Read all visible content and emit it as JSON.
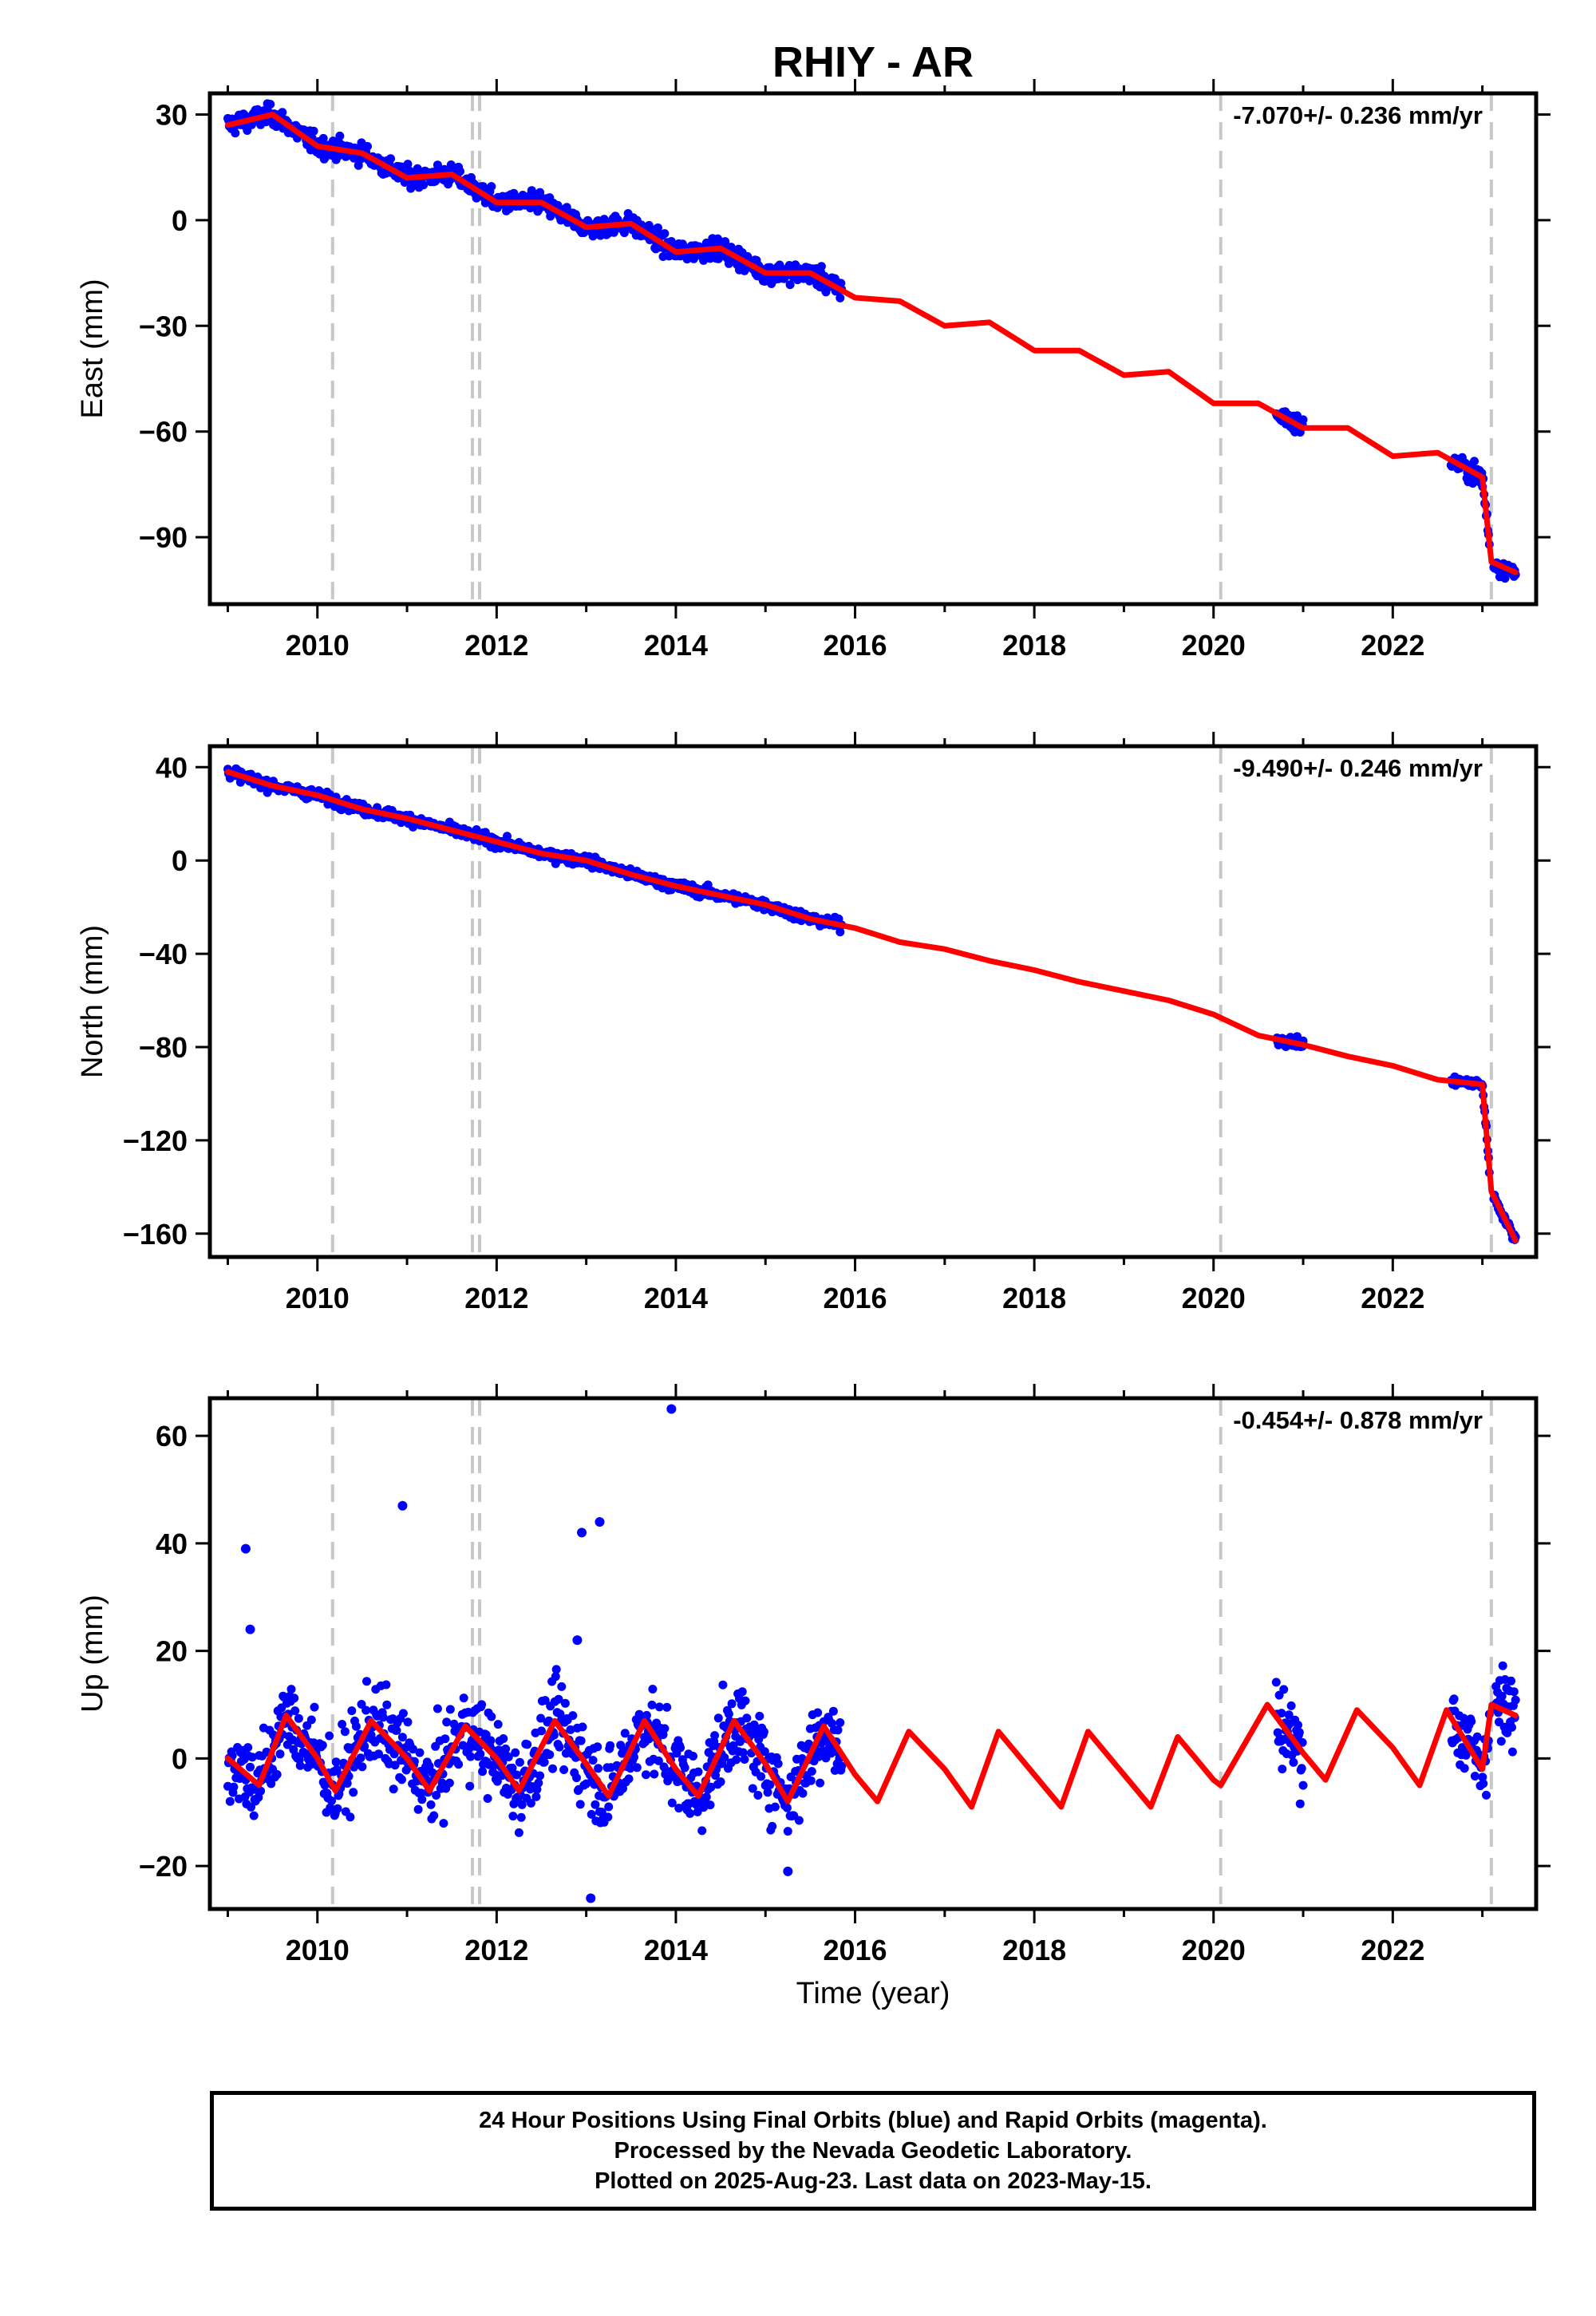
{
  "title": "RHIY - AR",
  "colors": {
    "data": "#0000ff",
    "model": "#ff0000",
    "steps": "#c8c8c8",
    "axes": "#000000"
  },
  "xlabel": "Time (year)",
  "footer": {
    "line1": "24 Hour Positions Using Final Orbits (blue) and Rapid Orbits (magenta).",
    "line2": "Processed by the Nevada Geodetic Laboratory.",
    "line3": "Plotted on 2025-Aug-23. Last data on 2023-May-15."
  },
  "chart_data": [
    {
      "type": "scatter",
      "component": "east",
      "ylabel": "East (mm)",
      "rate_label": "-7.070+/- 0.236 mm/yr",
      "xlim": [
        2008.8,
        2023.6
      ],
      "ylim": [
        -109,
        36
      ],
      "xticks": [
        2010,
        2012,
        2014,
        2016,
        2018,
        2020,
        2022
      ],
      "xtick_labels": [
        "2010",
        "2012",
        "2014",
        "2016",
        "2018",
        "2020",
        "2022"
      ],
      "yticks": [
        30,
        0,
        -30,
        -60,
        -90
      ],
      "ytick_labels": [
        "30",
        "0",
        "−30",
        "−60",
        "−90"
      ],
      "step_lines": [
        2010.17,
        2011.73,
        2011.81,
        2020.08,
        2023.1
      ],
      "data_segments": [
        [
          2009.0,
          2015.85
        ],
        [
          2020.7,
          2021.0
        ],
        [
          2022.65,
          2023.37
        ]
      ],
      "series": [
        {
          "name": "",
          "role": "model fit",
          "x": [
            2009.0,
            2009.5,
            2010.0,
            2010.5,
            2011.0,
            2011.5,
            2012.0,
            2012.5,
            2013.0,
            2013.5,
            2014.0,
            2014.5,
            2015.0,
            2015.5,
            2016.0,
            2016.5,
            2017.0,
            2017.5,
            2018.0,
            2018.5,
            2019.0,
            2019.5,
            2020.0,
            2020.5,
            2021.0,
            2021.5,
            2022.0,
            2022.5,
            2023.0,
            2023.1,
            2023.37
          ],
          "y": [
            27,
            30,
            21,
            19,
            12,
            13,
            5,
            5,
            -2,
            -1,
            -9,
            -8,
            -15,
            -15,
            -22,
            -23,
            -30,
            -29,
            -37,
            -37,
            -44,
            -43,
            -52,
            -52,
            -59,
            -59,
            -67,
            -66,
            -73,
            -97,
            -100
          ]
        }
      ]
    },
    {
      "type": "scatter",
      "component": "north",
      "ylabel": "North (mm)",
      "rate_label": "-9.490+/- 0.246 mm/yr",
      "xlim": [
        2008.8,
        2023.6
      ],
      "ylim": [
        -170,
        49
      ],
      "xticks": [
        2010,
        2012,
        2014,
        2016,
        2018,
        2020,
        2022
      ],
      "xtick_labels": [
        "2010",
        "2012",
        "2014",
        "2016",
        "2018",
        "2020",
        "2022"
      ],
      "yticks": [
        40,
        0,
        -40,
        -80,
        -120,
        -160
      ],
      "ytick_labels": [
        "40",
        "0",
        "−40",
        "−80",
        "−120",
        "−160"
      ],
      "step_lines": [
        2010.17,
        2011.73,
        2011.81,
        2020.08,
        2023.1
      ],
      "data_segments": [
        [
          2009.0,
          2015.85
        ],
        [
          2020.7,
          2021.0
        ],
        [
          2022.65,
          2023.37
        ]
      ],
      "series": [
        {
          "name": "",
          "role": "model fit",
          "x": [
            2009.0,
            2009.5,
            2010.0,
            2010.5,
            2011.0,
            2011.5,
            2012.0,
            2012.5,
            2013.0,
            2013.5,
            2014.0,
            2014.5,
            2015.0,
            2015.5,
            2016.0,
            2016.5,
            2017.0,
            2017.5,
            2018.0,
            2018.5,
            2019.0,
            2019.5,
            2020.0,
            2020.5,
            2021.0,
            2021.5,
            2022.0,
            2022.5,
            2023.0,
            2023.1,
            2023.37
          ],
          "y": [
            38,
            32,
            28,
            22,
            18,
            13,
            8,
            3,
            0,
            -6,
            -11,
            -15,
            -19,
            -25,
            -29,
            -35,
            -38,
            -43,
            -47,
            -52,
            -56,
            -60,
            -66,
            -75,
            -79,
            -84,
            -88,
            -94,
            -96,
            -142,
            -163
          ]
        }
      ]
    },
    {
      "type": "scatter",
      "component": "up",
      "ylabel": "Up (mm)",
      "rate_label": "-0.454+/- 0.878 mm/yr",
      "xlim": [
        2008.8,
        2023.6
      ],
      "ylim": [
        -28,
        67
      ],
      "xticks": [
        2010,
        2012,
        2014,
        2016,
        2018,
        2020,
        2022
      ],
      "xtick_labels": [
        "2010",
        "2012",
        "2014",
        "2016",
        "2018",
        "2020",
        "2022"
      ],
      "yticks": [
        60,
        40,
        20,
        0,
        -20
      ],
      "ytick_labels": [
        "60",
        "40",
        "20",
        "0",
        "−20"
      ],
      "step_lines": [
        2010.17,
        2011.73,
        2011.81,
        2020.08,
        2023.1
      ],
      "data_segments": [
        [
          2009.0,
          2015.85
        ],
        [
          2020.7,
          2021.0
        ],
        [
          2022.65,
          2023.37
        ]
      ],
      "series": [
        {
          "name": "",
          "role": "model fit",
          "x": [
            2009.0,
            2009.35,
            2009.65,
            2010.0,
            2010.2,
            2010.6,
            2011.0,
            2011.25,
            2011.65,
            2012.0,
            2012.25,
            2012.65,
            2013.0,
            2013.25,
            2013.65,
            2014.0,
            2014.25,
            2014.65,
            2015.0,
            2015.25,
            2015.65,
            2016.0,
            2016.25,
            2016.6,
            2017.0,
            2017.3,
            2017.6,
            2018.0,
            2018.3,
            2018.6,
            2019.0,
            2019.3,
            2019.6,
            2020.0,
            2020.08,
            2020.6,
            2021.0,
            2021.25,
            2021.6,
            2022.0,
            2022.3,
            2022.6,
            2023.0,
            2023.1,
            2023.37
          ],
          "y": [
            0,
            -5,
            8,
            0,
            -6,
            7,
            0,
            -6,
            6,
            0,
            -6,
            7,
            -1,
            -7,
            7,
            -2,
            -7,
            7,
            -1,
            -8,
            6,
            -3,
            -8,
            5,
            -2,
            -9,
            5,
            -3,
            -9,
            5,
            -3,
            -9,
            4,
            -4,
            -5,
            10,
            1,
            -4,
            9,
            2,
            -5,
            9,
            -2,
            10,
            8
          ]
        },
        {
          "name": "",
          "role": "outliers",
          "x": [
            2009.2,
            2009.25,
            2010.95,
            2012.95,
            2013.15,
            2012.9,
            2013.95,
            2013.05,
            2015.25
          ],
          "y": [
            39,
            24,
            47,
            42,
            44,
            22,
            65,
            -26,
            -21
          ]
        }
      ]
    }
  ]
}
